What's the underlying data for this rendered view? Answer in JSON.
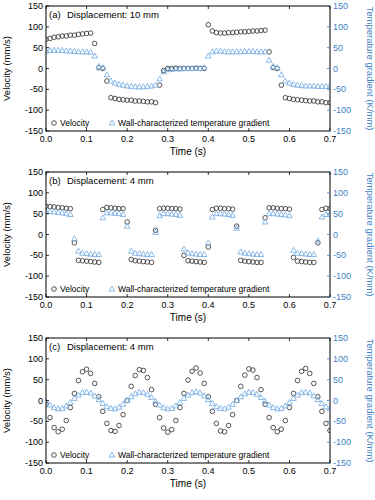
{
  "chart_data": [
    {
      "type": "scatter",
      "annotations": [
        "(a)",
        "Displacement: 10 mm"
      ],
      "x_label": "Time (s)",
      "y_label": "Velocity (mm/s)",
      "y2_label": "Temperature gradient (K/mm)",
      "xlim": [
        0,
        0.7
      ],
      "xticks": [
        {
          "value": 0,
          "label": "0.0"
        },
        0.1,
        0.2,
        0.3,
        0.4,
        0.5,
        0.6,
        0.7
      ],
      "ylim": [
        -150,
        150
      ],
      "yticks": [
        -150,
        -100,
        -50,
        0,
        50,
        100,
        150
      ],
      "y2lim": [
        -150,
        150
      ],
      "y2ticks": [
        -150,
        -100,
        -50,
        0,
        50,
        100,
        150
      ],
      "grid": false,
      "legend": "lower left",
      "x": [
        0,
        0.01,
        0.02,
        0.03,
        0.04,
        0.05,
        0.06,
        0.07,
        0.08,
        0.09,
        0.1,
        0.11,
        0.12,
        0.13,
        0.14,
        0.15,
        0.16,
        0.17,
        0.18,
        0.19,
        0.2,
        0.21,
        0.22,
        0.23,
        0.24,
        0.25,
        0.26,
        0.27,
        0.28,
        0.29,
        0.3,
        0.31,
        0.32,
        0.33,
        0.34,
        0.35,
        0.36,
        0.37,
        0.38,
        0.39,
        0.4,
        0.41,
        0.42,
        0.43,
        0.44,
        0.45,
        0.46,
        0.47,
        0.48,
        0.49,
        0.5,
        0.51,
        0.52,
        0.53,
        0.54,
        0.55,
        0.56,
        0.57,
        0.58,
        0.59,
        0.6,
        0.61,
        0.62,
        0.63,
        0.64,
        0.65,
        0.66,
        0.67,
        0.68,
        0.69,
        0.7
      ],
      "series": [
        {
          "name": "Velocity",
          "color": "#404040",
          "marker": "circle",
          "values": [
            70,
            72,
            75,
            76,
            78,
            78,
            80,
            80,
            82,
            83,
            84,
            85,
            60,
            2,
            0,
            -30,
            -70,
            -72,
            -74,
            -75,
            -76,
            -76,
            -78,
            -78,
            -79,
            -80,
            -80,
            -82,
            -40,
            -5,
            0,
            0,
            1,
            0,
            0,
            0,
            0,
            1,
            0,
            0,
            105,
            90,
            86,
            85,
            85,
            86,
            86,
            87,
            88,
            88,
            89,
            90,
            90,
            91,
            92,
            40,
            2,
            0,
            -40,
            -70,
            -72,
            -74,
            -75,
            -76,
            -77,
            -78,
            -78,
            -80,
            -80,
            -82,
            -82
          ]
        },
        {
          "name": "Wall-characterized temperature gradient",
          "color": "#7fb2e5",
          "marker": "triangle",
          "axis": "y2",
          "values": [
            42,
            43,
            44,
            44,
            43,
            42,
            42,
            41,
            40,
            40,
            40,
            39,
            30,
            5,
            2,
            -15,
            -30,
            -35,
            -38,
            -40,
            -42,
            -43,
            -44,
            -44,
            -44,
            -43,
            -42,
            -40,
            -25,
            -8,
            -3,
            -2,
            -1,
            -1,
            0,
            0,
            0,
            0,
            0,
            2,
            30,
            40,
            42,
            42,
            40,
            40,
            40,
            40,
            40,
            41,
            41,
            41,
            40,
            40,
            40,
            20,
            5,
            2,
            -15,
            -30,
            -35,
            -38,
            -40,
            -41,
            -42,
            -42,
            -42,
            -43,
            -43,
            -43,
            -43
          ]
        }
      ]
    },
    {
      "type": "scatter",
      "annotations": [
        "(b)",
        "Displacement: 4 mm"
      ],
      "x_label": "Time (s)",
      "y_label": "Velocity (mm/s)",
      "y2_label": "Temperature gradient (K/mm)",
      "xlim": [
        0,
        0.7
      ],
      "xticks": [
        {
          "value": 0,
          "label": "0.0"
        },
        0.1,
        0.2,
        0.3,
        0.4,
        0.5,
        0.6,
        0.7
      ],
      "ylim": [
        -150,
        150
      ],
      "yticks": [
        -150,
        -100,
        -50,
        0,
        50,
        100,
        150
      ],
      "y2lim": [
        -150,
        150
      ],
      "y2ticks": [
        -150,
        -100,
        -50,
        0,
        50,
        100,
        150
      ],
      "grid": false,
      "legend": "lower left",
      "x": [
        0,
        0.01,
        0.02,
        0.03,
        0.04,
        0.05,
        0.06,
        0.07,
        0.08,
        0.09,
        0.1,
        0.11,
        0.12,
        0.13,
        0.14,
        0.15,
        0.16,
        0.17,
        0.18,
        0.19,
        0.2,
        0.21,
        0.22,
        0.23,
        0.24,
        0.25,
        0.26,
        0.27,
        0.28,
        0.29,
        0.3,
        0.31,
        0.32,
        0.33,
        0.34,
        0.35,
        0.36,
        0.37,
        0.38,
        0.39,
        0.4,
        0.41,
        0.42,
        0.43,
        0.44,
        0.45,
        0.46,
        0.47,
        0.48,
        0.49,
        0.5,
        0.51,
        0.52,
        0.53,
        0.54,
        0.55,
        0.56,
        0.57,
        0.58,
        0.59,
        0.6,
        0.61,
        0.62,
        0.63,
        0.64,
        0.65,
        0.66,
        0.67,
        0.68,
        0.69,
        0.7
      ],
      "series": [
        {
          "name": "Velocity",
          "color": "#404040",
          "marker": "circle",
          "values": [
            68,
            67,
            66,
            65,
            64,
            63,
            62,
            -20,
            -62,
            -63,
            -64,
            -65,
            -66,
            -67,
            60,
            65,
            64,
            63,
            62,
            62,
            30,
            -60,
            -63,
            -64,
            -65,
            -66,
            -67,
            10,
            62,
            63,
            63,
            62,
            62,
            61,
            -50,
            -63,
            -64,
            -65,
            -66,
            -67,
            -30,
            60,
            63,
            63,
            62,
            62,
            61,
            20,
            -62,
            -64,
            -65,
            -66,
            -67,
            -67,
            40,
            64,
            64,
            63,
            62,
            62,
            61,
            -55,
            -64,
            -65,
            -66,
            -67,
            -67,
            -20,
            60,
            63,
            62
          ]
        },
        {
          "name": "Wall-characterized temperature gradient",
          "color": "#7fb2e5",
          "marker": "triangle",
          "axis": "y2",
          "values": [
            55,
            55,
            54,
            53,
            52,
            50,
            48,
            -10,
            -40,
            -45,
            -46,
            -47,
            -48,
            -48,
            40,
            52,
            52,
            51,
            50,
            48,
            20,
            -40,
            -45,
            -46,
            -47,
            -48,
            -48,
            5,
            45,
            50,
            50,
            49,
            48,
            46,
            -35,
            -44,
            -46,
            -47,
            -48,
            -48,
            -20,
            42,
            50,
            50,
            49,
            48,
            46,
            15,
            -42,
            -45,
            -46,
            -47,
            -48,
            -48,
            30,
            50,
            50,
            49,
            48,
            47,
            45,
            -38,
            -45,
            -46,
            -47,
            -48,
            -48,
            -15,
            42,
            48,
            48
          ]
        }
      ]
    },
    {
      "type": "scatter",
      "annotations": [
        "(c)",
        "Displacement: 4 mm"
      ],
      "x_label": "Time (s)",
      "y_label": "Velocity (mm/s)",
      "y2_label": "Temperature gradient (K/mm)",
      "xlim": [
        0,
        0.7
      ],
      "xticks": [
        {
          "value": 0,
          "label": "0.0"
        },
        0.1,
        0.2,
        0.3,
        0.4,
        0.5,
        0.6,
        0.7
      ],
      "ylim": [
        -150,
        150
      ],
      "yticks": [
        -150,
        -100,
        -50,
        0,
        50,
        100,
        150
      ],
      "y2lim": [
        -150,
        150
      ],
      "y2ticks": [
        -150,
        -100,
        -50,
        0,
        50,
        100,
        150
      ],
      "grid": false,
      "legend": "lower left",
      "x": [
        0,
        0.01,
        0.02,
        0.03,
        0.04,
        0.05,
        0.06,
        0.07,
        0.08,
        0.09,
        0.1,
        0.11,
        0.12,
        0.13,
        0.14,
        0.15,
        0.16,
        0.17,
        0.18,
        0.19,
        0.2,
        0.21,
        0.22,
        0.23,
        0.24,
        0.25,
        0.26,
        0.27,
        0.28,
        0.29,
        0.3,
        0.31,
        0.32,
        0.33,
        0.34,
        0.35,
        0.36,
        0.37,
        0.38,
        0.39,
        0.4,
        0.41,
        0.42,
        0.43,
        0.44,
        0.45,
        0.46,
        0.47,
        0.48,
        0.49,
        0.5,
        0.51,
        0.52,
        0.53,
        0.54,
        0.55,
        0.56,
        0.57,
        0.58,
        0.59,
        0.6,
        0.61,
        0.62,
        0.63,
        0.64,
        0.65,
        0.66,
        0.67,
        0.68,
        0.69,
        0.7
      ],
      "series": [
        {
          "name": "Velocity",
          "color": "#404040",
          "marker": "circle",
          "values": [
            -9,
            -41,
            -65,
            -75,
            -69,
            -48,
            -17,
            17,
            48,
            69,
            75,
            65,
            41,
            9,
            -26,
            -55,
            -72,
            -74,
            -60,
            -34,
            0,
            34,
            60,
            74,
            72,
            55,
            26,
            -9,
            -41,
            -66,
            -76,
            -70,
            -48,
            -17,
            17,
            49,
            70,
            78,
            66,
            41,
            9,
            -26,
            -55,
            -73,
            -75,
            -60,
            -34,
            0,
            34,
            61,
            76,
            73,
            55,
            26,
            -9,
            -41,
            -65,
            -75,
            -69,
            -48,
            -17,
            17,
            48,
            70,
            77,
            65,
            41,
            9,
            -26,
            -55,
            -72
          ]
        },
        {
          "name": "Wall-characterized temperature gradient",
          "color": "#7fb2e5",
          "marker": "triangle",
          "axis": "y2",
          "values": [
            -2,
            -11,
            -17,
            -20,
            -19,
            -13,
            -5,
            5,
            13,
            19,
            20,
            18,
            11,
            2,
            -7,
            -15,
            -19,
            -20,
            -16,
            -9,
            0,
            9,
            16,
            20,
            19,
            15,
            7,
            -2,
            -11,
            -17,
            -20,
            -19,
            -13,
            -5,
            5,
            13,
            19,
            21,
            18,
            11,
            2,
            -7,
            -15,
            -19,
            -20,
            -16,
            -9,
            0,
            9,
            16,
            20,
            19,
            15,
            7,
            -2,
            -11,
            -17,
            -20,
            -19,
            -13,
            -5,
            5,
            13,
            19,
            20,
            18,
            11,
            2,
            -7,
            -15,
            -19
          ]
        }
      ]
    }
  ]
}
